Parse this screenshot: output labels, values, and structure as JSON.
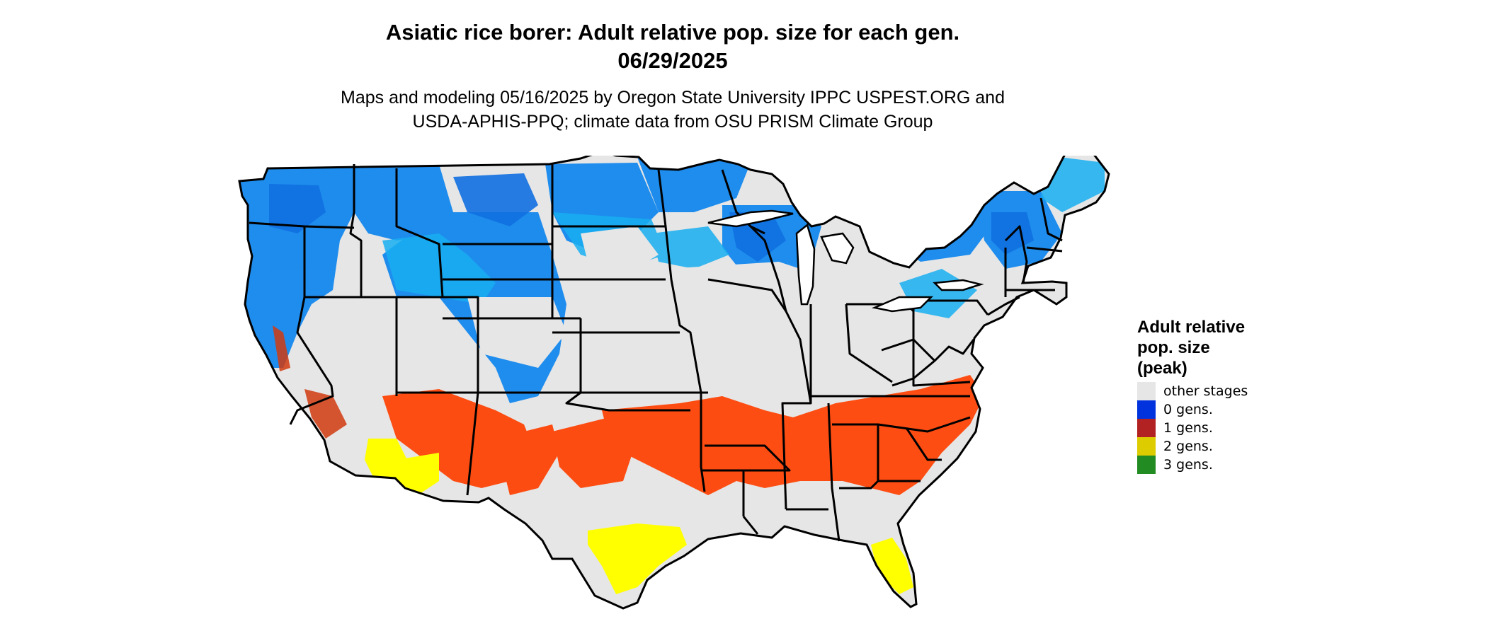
{
  "title_line1": "Asiatic rice borer: Adult relative pop. size for each gen.",
  "title_line2": "06/29/2025",
  "subtitle_line1": "Maps and modeling 05/16/2025 by Oregon State University IPPC USPEST.ORG and",
  "subtitle_line2": "USDA-APHIS-PPQ; climate data from OSU PRISM Climate Group",
  "legend": {
    "title_line1": "Adult relative",
    "title_line2": "pop. size",
    "title_line3": "(peak)",
    "items": [
      {
        "label": "other stages",
        "color": "#e6e6e6"
      },
      {
        "label": "0 gens.",
        "color": "#0033dd"
      },
      {
        "label": "1 gens.",
        "color": "#b22222"
      },
      {
        "label": "2 gens.",
        "color": "#ddcc00"
      },
      {
        "label": "3 gens.",
        "color": "#228b22"
      }
    ]
  },
  "map_colors": {
    "background_land": "#e6e6e6",
    "cool_light": "#18aef0",
    "cool_mid": "#1488ee",
    "cool_dark": "#0f6fe0",
    "warm": "#ff4000",
    "warm_dark": "#d03a10",
    "hot": "#ffff00",
    "border": "#000000"
  }
}
